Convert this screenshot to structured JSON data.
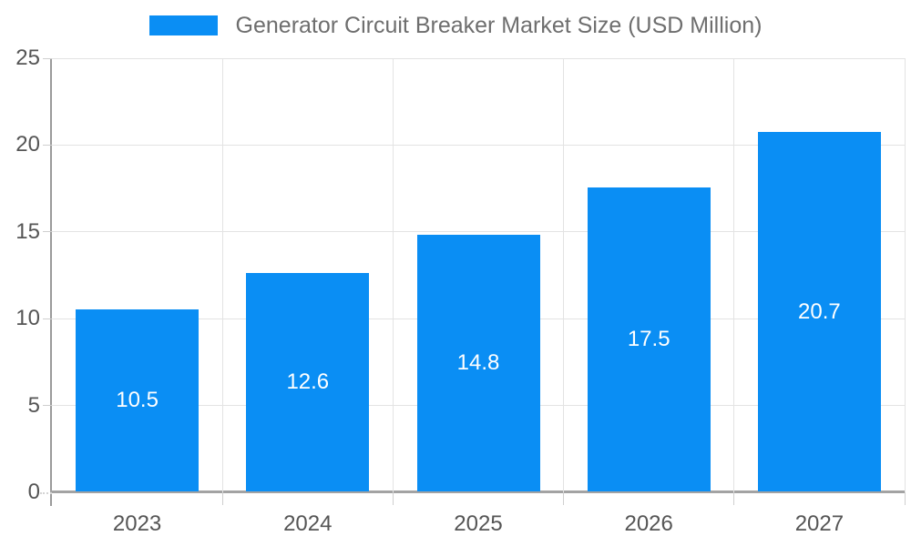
{
  "colors": {
    "bar": "#0a8ef4",
    "axis": "#a3a3a3",
    "grid": "#e3e3e3",
    "tick": "#cfcfcf",
    "tick_label": "#555555",
    "legend_text": "#6e6e6e",
    "value_label": "#ffffff",
    "background": "#ffffff"
  },
  "chart_data": {
    "type": "bar",
    "title": "Generator Circuit Breaker Market Size (USD Million)",
    "categories": [
      "2023",
      "2024",
      "2025",
      "2026",
      "2027"
    ],
    "values": [
      10.5,
      12.6,
      14.8,
      17.5,
      20.7
    ],
    "value_labels": [
      "10.5",
      "12.6",
      "14.8",
      "17.5",
      "20.7"
    ],
    "xlabel": "",
    "ylabel": "",
    "ylim": [
      0,
      25
    ],
    "yticks": [
      0,
      5,
      10,
      15,
      20,
      25
    ],
    "grid": "on",
    "legend_position": "top-center",
    "value_label_position": "inside-center",
    "bar_color": "#0a8ef4"
  }
}
